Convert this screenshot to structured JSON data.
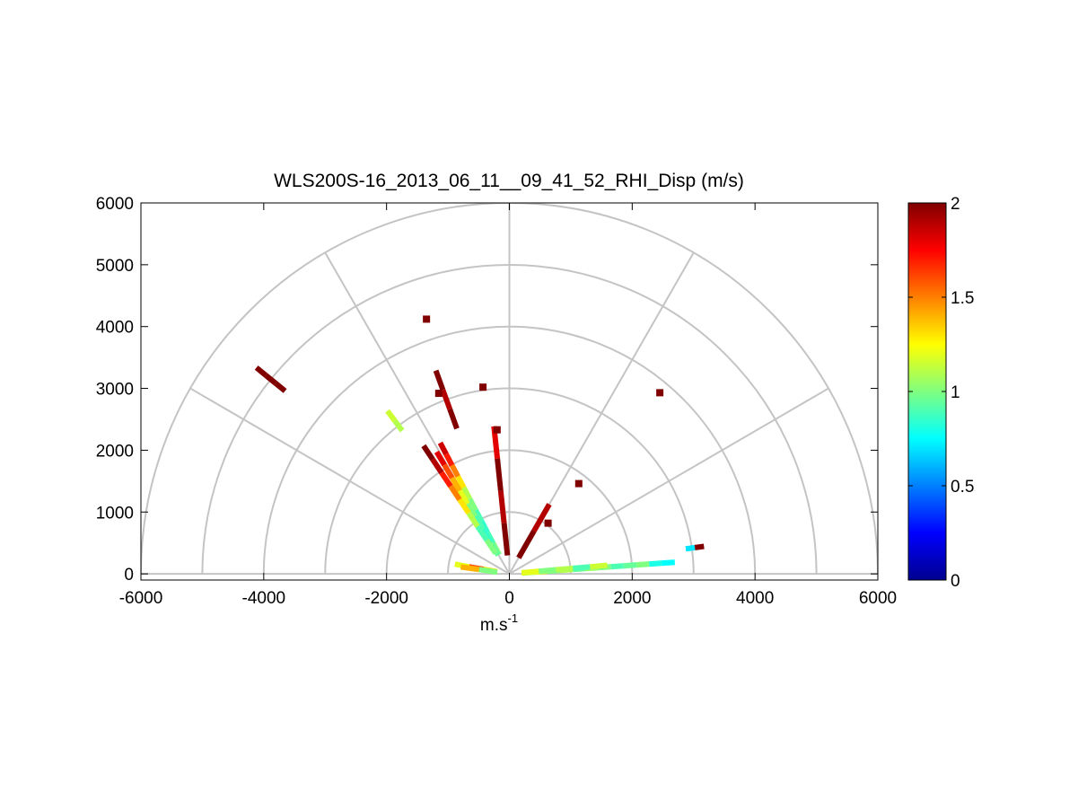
{
  "chart_data": {
    "type": "scatter",
    "title": "WLS200S-16_2013_06_11__09_41_52_RHI_Disp (m/s)",
    "xlabel": "m.s",
    "xlabel_superscript": "-1",
    "ylabel": "",
    "xlim": [
      -6000,
      6000
    ],
    "ylim": [
      -100,
      6000
    ],
    "x_ticks": [
      -6000,
      -4000,
      -2000,
      0,
      2000,
      4000,
      6000
    ],
    "y_ticks": [
      0,
      1000,
      2000,
      3000,
      4000,
      5000,
      6000
    ],
    "x_tick_labels": [
      "-6000",
      "-4000",
      "-2000",
      "0",
      "2000",
      "4000",
      "6000"
    ],
    "y_tick_labels": [
      "0",
      "1000",
      "2000",
      "3000",
      "4000",
      "5000",
      "6000"
    ],
    "polar_grid": {
      "range_rings": [
        1000,
        2000,
        3000,
        4000,
        5000,
        6000
      ],
      "spokes_deg": [
        0,
        30,
        60,
        90,
        120,
        150,
        180
      ]
    },
    "colorbar": {
      "colormap": "jet",
      "min": 0,
      "max": 2,
      "ticks": [
        0,
        0.5,
        1,
        1.5,
        2
      ],
      "tick_labels": [
        "0",
        "0.5",
        "1",
        "1.5",
        "2"
      ]
    },
    "scan_beams": [
      {
        "angle_deg": 4,
        "r_start": 200,
        "r_end": 2700,
        "values": [
          1.1,
          1.2,
          1.0,
          1.1,
          0.95,
          1.05,
          1.0,
          0.9,
          0.95,
          1.0,
          0.8,
          0.75
        ]
      },
      {
        "angle_deg": 5,
        "r_start": 200,
        "r_end": 1600,
        "values": [
          1.2,
          1.0,
          1.1,
          0.9,
          1.15
        ]
      },
      {
        "angle_deg": 8,
        "r_start": 2900,
        "r_end": 3200,
        "values": [
          0.7,
          2.0
        ]
      },
      {
        "angle_deg": 170,
        "r_start": 200,
        "r_end": 900,
        "values": [
          1.3,
          1.6,
          1.2
        ]
      },
      {
        "angle_deg": 172,
        "r_start": 200,
        "r_end": 800,
        "values": [
          1.0,
          1.4
        ]
      },
      {
        "angle_deg": 118,
        "r_start": 350,
        "r_end": 2400,
        "values": [
          1.0,
          0.9,
          0.85,
          0.9,
          1.0,
          1.1,
          1.3,
          1.5,
          1.7,
          1.85
        ]
      },
      {
        "angle_deg": 121,
        "r_start": 350,
        "r_end": 2300,
        "values": [
          0.95,
          0.85,
          0.9,
          1.0,
          1.2,
          1.4,
          1.6,
          1.8
        ]
      },
      {
        "angle_deg": 124,
        "r_start": 400,
        "r_end": 2500,
        "values": [
          1.0,
          0.9,
          1.1,
          1.3,
          1.5,
          1.7,
          1.9,
          2.0
        ]
      },
      {
        "angle_deg": 127,
        "r_start": 2900,
        "r_end": 3300,
        "values": [
          1.1,
          1.15
        ]
      },
      {
        "angle_deg": 141,
        "r_start": 4700,
        "r_end": 5300,
        "values": [
          2.0,
          2.0,
          2.0
        ]
      },
      {
        "angle_deg": 110,
        "r_start": 2500,
        "r_end": 3500,
        "values": [
          2.0,
          1.9,
          2.0
        ]
      },
      {
        "angle_deg": 96,
        "r_start": 300,
        "r_end": 2400,
        "values": [
          2.0,
          1.9,
          2.0,
          1.8
        ]
      },
      {
        "angle_deg": 60,
        "r_start": 300,
        "r_end": 1300,
        "values": [
          2.0,
          1.9
        ]
      }
    ],
    "isolated_points": [
      {
        "x": 2450,
        "y": 2930,
        "value": 2.0
      },
      {
        "x": -1350,
        "y": 4120,
        "value": 2.0
      },
      {
        "x": -430,
        "y": 3020,
        "value": 2.0
      },
      {
        "x": -1150,
        "y": 2920,
        "value": 2.0
      },
      {
        "x": 630,
        "y": 820,
        "value": 2.0
      },
      {
        "x": 1130,
        "y": 1460,
        "value": 2.0
      },
      {
        "x": -200,
        "y": 2330,
        "value": 2.0
      }
    ]
  }
}
